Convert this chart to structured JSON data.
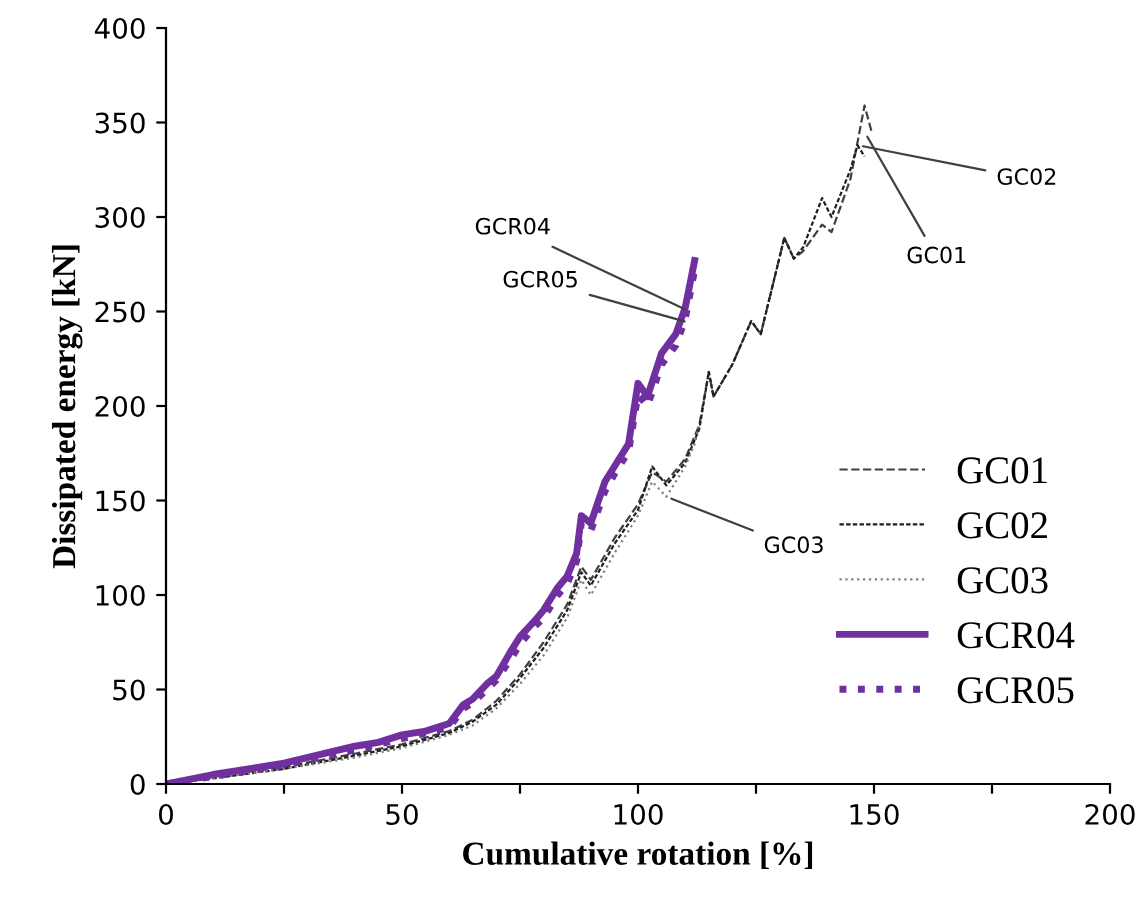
{
  "chart_data": {
    "type": "line",
    "xlabel": "Cumulative rotation [%]",
    "ylabel": "Dissipated energy [kN]",
    "xlim": [
      0,
      200
    ],
    "ylim": [
      0,
      400
    ],
    "xticks": [
      0,
      {
        "value": 25,
        "label": null
      },
      50,
      {
        "value": 75,
        "label": null
      },
      100,
      {
        "value": 125,
        "label": null
      },
      150,
      {
        "value": 175,
        "label": null
      },
      200
    ],
    "yticks": [
      0,
      50,
      100,
      150,
      200,
      250,
      300,
      350,
      400
    ],
    "grid": false,
    "legend": "bottom right",
    "series": [
      {
        "name": "GC01",
        "color": "#404040",
        "line_style": "dashed",
        "x": [
          0,
          10,
          25,
          40,
          50,
          60,
          65,
          70,
          75,
          80,
          85,
          88,
          90,
          95,
          100,
          103,
          106,
          110,
          113,
          115,
          116,
          120,
          124,
          126,
          131,
          133,
          135,
          139,
          141,
          145,
          148,
          149.5
        ],
        "values": [
          0,
          4,
          9,
          16,
          21,
          28,
          34,
          44,
          58,
          75,
          95,
          115,
          108,
          130,
          148,
          165,
          160,
          172,
          190,
          218,
          205,
          222,
          245,
          238,
          289,
          278,
          282,
          296,
          292,
          320,
          359,
          345
        ]
      },
      {
        "name": "GC02",
        "color": "#202020",
        "line_style": "dashed",
        "x": [
          0,
          10,
          25,
          40,
          50,
          60,
          65,
          70,
          75,
          80,
          85,
          88,
          90,
          95,
          100,
          103,
          106,
          110,
          113,
          115,
          116,
          120,
          124,
          126,
          131,
          133,
          135,
          139,
          141,
          145,
          146.5,
          148
        ],
        "values": [
          0,
          3,
          8,
          15,
          20,
          27,
          33,
          42,
          56,
          72,
          92,
          112,
          105,
          127,
          145,
          168,
          158,
          170,
          188,
          218,
          205,
          222,
          245,
          238,
          289,
          278,
          284,
          310,
          300,
          325,
          338,
          332
        ]
      },
      {
        "name": "GC03",
        "color": "#808080",
        "line_style": "dotted",
        "x": [
          0,
          10,
          25,
          40,
          50,
          60,
          65,
          70,
          75,
          80,
          85,
          88,
          90,
          95,
          100,
          103,
          106,
          110,
          112,
          113
        ],
        "values": [
          0,
          3,
          8,
          14,
          19,
          26,
          31,
          40,
          53,
          68,
          88,
          108,
          100,
          122,
          142,
          160,
          152,
          168,
          180,
          190
        ]
      },
      {
        "name": "GCR04",
        "color": "#7030a0",
        "line_style": "solid",
        "x": [
          0,
          10,
          25,
          40,
          45,
          50,
          55,
          60,
          63,
          65,
          68,
          70,
          73,
          75,
          78,
          80,
          83,
          85,
          87,
          88,
          90,
          93,
          95,
          98,
          100,
          102,
          105,
          108,
          110,
          112
        ],
        "values": [
          0,
          5,
          11,
          20,
          22,
          26,
          28,
          32,
          42,
          45,
          53,
          57,
          70,
          78,
          86,
          92,
          104,
          110,
          122,
          142,
          138,
          160,
          168,
          180,
          212,
          205,
          228,
          238,
          252,
          277
        ]
      },
      {
        "name": "GCR05",
        "color": "#7030a0",
        "line_style": "dotted",
        "x": [
          0,
          10,
          25,
          40,
          45,
          50,
          55,
          60,
          63,
          65,
          68,
          70,
          73,
          75,
          78,
          80,
          83,
          85,
          87,
          88,
          90,
          93,
          95,
          98,
          100,
          102,
          105,
          108,
          110,
          112
        ],
        "values": [
          0,
          4,
          10,
          18,
          21,
          24,
          27,
          30,
          40,
          43,
          50,
          55,
          66,
          74,
          83,
          88,
          100,
          106,
          118,
          138,
          134,
          155,
          164,
          176,
          206,
          200,
          222,
          232,
          246,
          272
        ]
      }
    ],
    "annotations": [
      {
        "text": "GCR04",
        "x": 111,
        "y": 250
      },
      {
        "text": "GCR05",
        "x": 111,
        "y": 244
      },
      {
        "text": "GC02",
        "x": 146.5,
        "y": 338
      },
      {
        "text": "GC01",
        "x": 148,
        "y": 345
      },
      {
        "text": "GC03",
        "x": 106,
        "y": 152
      }
    ]
  }
}
